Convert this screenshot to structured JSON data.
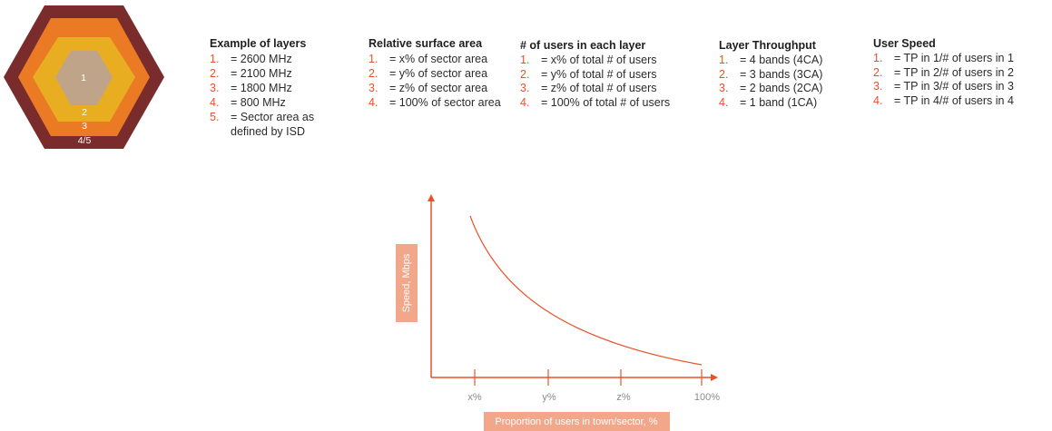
{
  "hexagon": {
    "layer_labels": [
      "1",
      "2",
      "3",
      "4/5"
    ],
    "colors": [
      "#7a2b2b",
      "#ea7a24",
      "#e9ad22",
      "#c0a48a"
    ]
  },
  "legend_columns": [
    {
      "title": "Example of layers",
      "items": [
        {
          "num": "1.",
          "text": "= 2600 MHz"
        },
        {
          "num": "2.",
          "text": "= 2100 MHz"
        },
        {
          "num": "3.",
          "text": "= 1800 MHz"
        },
        {
          "num": "4.",
          "text": "= 800 MHz"
        },
        {
          "num": "5.",
          "text": "= Sector area as defined by ISD"
        }
      ]
    },
    {
      "title": "Relative surface area",
      "items": [
        {
          "num": "1.",
          "text": "= x% of sector area"
        },
        {
          "num": "2.",
          "text": "= y% of sector area"
        },
        {
          "num": "3.",
          "text": "= z% of sector area"
        },
        {
          "num": "4.",
          "text": "= 100% of sector area"
        }
      ]
    },
    {
      "title": "# of users in each layer",
      "items": [
        {
          "num": "1.",
          "text": "= x% of total # of users"
        },
        {
          "num": "2.",
          "text": "= y% of total # of users"
        },
        {
          "num": "3.",
          "text": "= z% of total # of users"
        },
        {
          "num": "4.",
          "text": "= 100% of total # of users"
        }
      ]
    },
    {
      "title": "Layer Throughput",
      "items": [
        {
          "num": "1.",
          "text": "= 4 bands (4CA)"
        },
        {
          "num": "2.",
          "text": "= 3 bands (3CA)"
        },
        {
          "num": "3.",
          "text": "= 2 bands (2CA)"
        },
        {
          "num": "4.",
          "text": "= 1 band (1CA)"
        }
      ]
    },
    {
      "title": "User Speed",
      "items": [
        {
          "num": "1.",
          "text": "= TP in 1/# of users in 1"
        },
        {
          "num": "2.",
          "text": "= TP in 2/# of users in 2"
        },
        {
          "num": "3.",
          "text": "= TP in 3/# of users in 3"
        },
        {
          "num": "4.",
          "text": "= TP in 4/# of users in 4"
        }
      ]
    }
  ],
  "graph": {
    "ylabel": "Speed, Mbps",
    "xlabel": "Proportion of users in town/sector, %",
    "x_ticks": [
      "x%",
      "y%",
      "z%",
      "100%"
    ],
    "accent_color": "#e8522a",
    "label_box_color": "#f2a68a"
  }
}
